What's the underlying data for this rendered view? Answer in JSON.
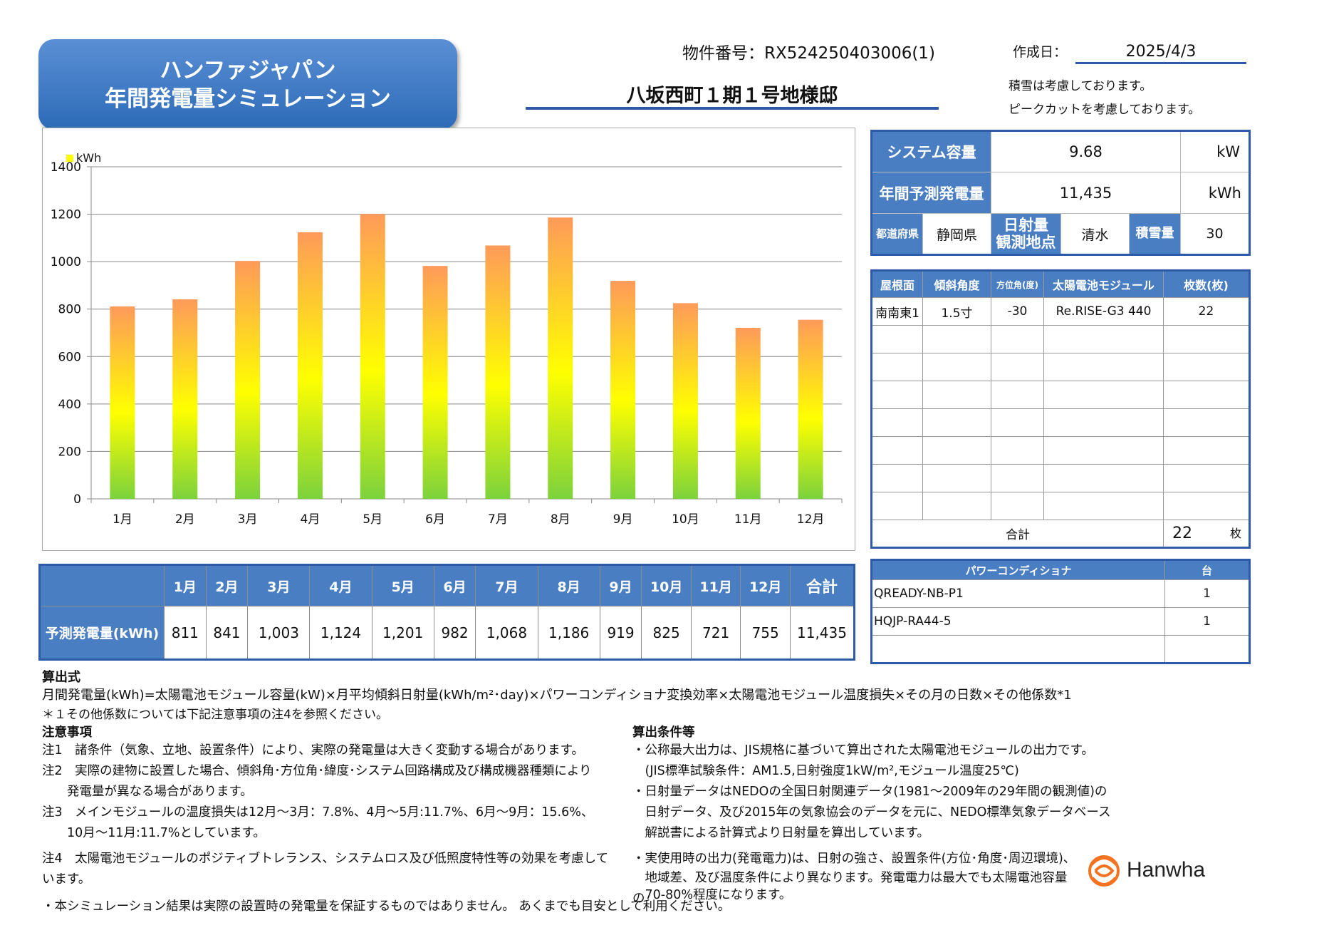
{
  "header": {
    "title_line1": "ハンファジャパン",
    "title_line2": "年間発電量シミュレーション",
    "doc_number": "物件番号：RX524250403006(1)",
    "created_label": "作成日：",
    "created_date": "2025/4/3",
    "property_name": "八坂西町１期１号地様邸",
    "note_snow": "積雪は考慮しております。",
    "note_peakcut": "ピークカットを考慮しております。"
  },
  "system": {
    "capacity_label": "システム容量",
    "capacity_value": "9.68",
    "capacity_unit": "kW",
    "annual_label": "年間予測発電量",
    "annual_value": "11,435",
    "annual_unit": "kWh",
    "pref_label": "都道府県",
    "pref_value": "静岡県",
    "sun_label1": "日射量",
    "sun_label2": "観測地点",
    "sun_value": "清水",
    "snow_label": "積雪量",
    "snow_value": "30"
  },
  "roof": {
    "headers": [
      "屋根面",
      "傾斜角度",
      "方位角(度)",
      "太陽電池モジュール",
      "枚数(枚)"
    ],
    "row1": [
      "南南東1",
      "1.5寸",
      "-30",
      "Re.RISE-G3 440",
      "22"
    ],
    "total_label": "合計",
    "total_value": "22",
    "total_unit": "枚"
  },
  "power_conditioner": {
    "header_name": "パワーコンディショナ",
    "header_count": "台",
    "rows": [
      {
        "name": "QREADY-NB-P1",
        "count": "1"
      },
      {
        "name": "HQJP-RA44-5",
        "count": "1"
      }
    ]
  },
  "monthly_table": {
    "row_label": "予測発電量(kWh)",
    "months": [
      "1月",
      "2月",
      "3月",
      "4月",
      "5月",
      "6月",
      "7月",
      "8月",
      "9月",
      "10月",
      "11月",
      "12月"
    ],
    "total_label": "合計",
    "values": [
      "811",
      "841",
      "1,003",
      "1,124",
      "1,201",
      "982",
      "1,068",
      "1,186",
      "919",
      "825",
      "721",
      "755"
    ],
    "total_value": "11,435"
  },
  "chart_data": {
    "type": "bar",
    "categories": [
      "1月",
      "2月",
      "3月",
      "4月",
      "5月",
      "6月",
      "7月",
      "8月",
      "9月",
      "10月",
      "11月",
      "12月"
    ],
    "series": [
      {
        "name": "kWh",
        "values": [
          811,
          841,
          1003,
          1124,
          1201,
          982,
          1068,
          1186,
          919,
          825,
          721,
          755
        ]
      }
    ],
    "legend": "kWh",
    "legend_position": "top-left",
    "ylim": [
      0,
      1400
    ],
    "yticks": [
      "0",
      "200",
      "400",
      "600",
      "800",
      "1000",
      "1200",
      "1400"
    ],
    "grid": true,
    "bar_gradient": [
      "#ff9a5a",
      "#ffff00",
      "#7cd23c"
    ]
  },
  "formula": {
    "heading": "算出式",
    "line1": "月間発電量(kWh)=太陽電池モジュール容量(kW)×月平均傾斜日射量(kWh/m²･day)×パワーコンディショナ変換効率×太陽電池モジュール温度損失×その月の日数×その他係数*1",
    "line2": "＊１その他係数については下記注意事項の注4を参照ください。"
  },
  "notes": {
    "heading": "注意事項",
    "n1": "注1　諸条件（気象、立地、設置条件）により、実際の発電量は大きく変動する場合があります。",
    "n2a": "注2　実際の建物に設置した場合、傾斜角･方位角･緯度･システム回路構成及び構成機器種類により",
    "n2b": "　　発電量が異なる場合があります。",
    "n3a": "注3　メインモジュールの温度損失は12月～3月：7.8%、4月～5月:11.7%、6月～9月：15.6%、",
    "n3b": "　　10月～11月:11.7%としています。",
    "n4": "注4　太陽電池モジュールのポジティブトレランス、システムロス及び低照度特性等の効果を考慮しています。",
    "footer": "・本シミュレーション結果は実際の設置時の発電量を保証するものではありません。 あくまでも目安として利用ください。"
  },
  "conditions": {
    "heading": "算出条件等",
    "c1a": "・公称最大出力は、JIS規格に基づいて算出された太陽電池モジュールの出力です。",
    "c1b": "　(JIS標準試験条件：AM1.5,日射強度1kW/m²,モジュール温度25℃)",
    "c2a": "・日射量データはNEDOの全国日射関連データ(1981～2009年の29年間の観測値)の",
    "c2b": "　日射データ、及び2015年の気象協会のデータを元に、NEDO標準気象データベース",
    "c2c": "　解説書による計算式より日射量を算出しています。",
    "c3a": "・実使用時の出力(発電電力)は、日射の強さ、設置条件(方位･角度･周辺環境)、",
    "c3b": "　地域差、及び温度条件により異なります。発電電力は最大でも太陽電池容量の",
    "c3c": "　70-80%程度になります。"
  },
  "logo": {
    "text": "Hanwha",
    "icon": "hanwha-logo-icon",
    "color": "#f37321"
  }
}
